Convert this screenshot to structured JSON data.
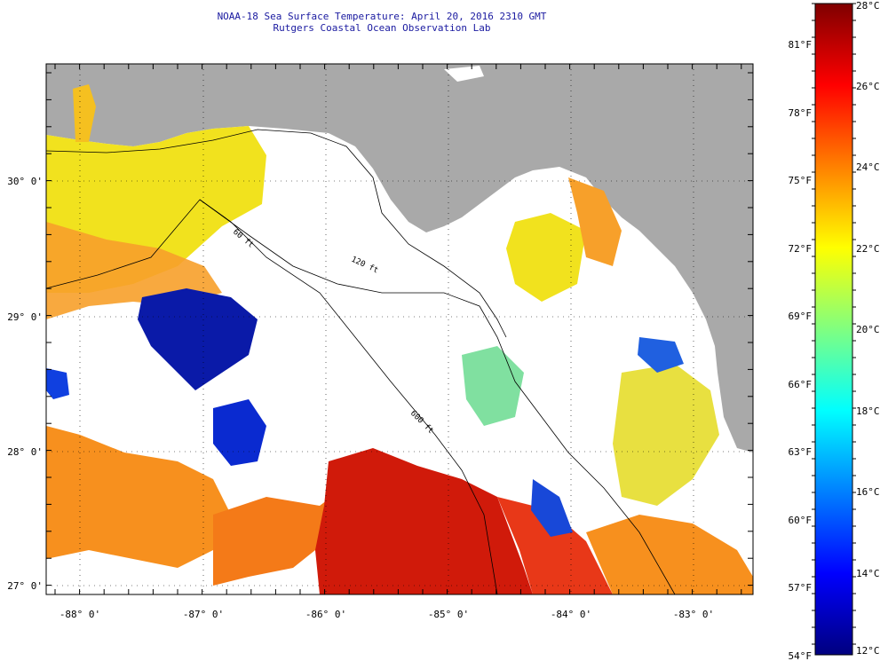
{
  "title_line1": "NOAA-18 Sea Surface Temperature:  April 20, 2016 2310 GMT",
  "title_line2": "Rutgers Coastal Ocean Observation Lab",
  "lat_labels": [
    "30° 0'",
    "29° 0'",
    "28° 0'",
    "27° 0'"
  ],
  "lon_labels": [
    "-88° 0'",
    "-87° 0'",
    "-86° 0'",
    "-85° 0'",
    "-84° 0'",
    "-83° 0'"
  ],
  "contour_labels": {
    "c60": "60 ft",
    "c120": "120 ft",
    "c600": "600 ft"
  },
  "colorbar": {
    "fahrenheit": [
      "81°F",
      "78°F",
      "75°F",
      "72°F",
      "69°F",
      "66°F",
      "63°F",
      "60°F",
      "57°F",
      "54°F"
    ],
    "celsius": [
      "28°C",
      "26°C",
      "24°C",
      "22°C",
      "20°C",
      "18°C",
      "16°C",
      "14°C",
      "12°C"
    ],
    "colors": [
      "#00007f",
      "#0000ff",
      "#0080ff",
      "#00ffff",
      "#80ff80",
      "#ffff00",
      "#ff8000",
      "#ff0000",
      "#7f0000"
    ]
  },
  "map_colors": {
    "land": "#a9a9a9",
    "cloud": "#ffffff",
    "warm_red": "#d01a0a",
    "orange": "#f7901e",
    "yellow": "#f1e21e",
    "cold_blue": "#0a1aa8"
  }
}
